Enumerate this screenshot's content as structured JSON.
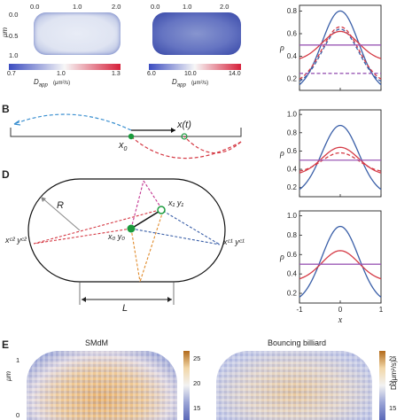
{
  "panel_a": {
    "left_map": {
      "x_ticks": [
        "0.0",
        "1.0",
        "2.0"
      ],
      "y_ticks": [
        "0.0",
        "0.5",
        "1.0"
      ],
      "y_label": "μm",
      "cb_ticks": [
        "0.7",
        "1.0",
        "1.3"
      ],
      "cb_label": "D",
      "cb_sub": "app",
      "cb_unit": "(μm²/s)",
      "cb_colors": [
        "#3b4cc0",
        "#f7f7f7",
        "#d6203a"
      ]
    },
    "right_map": {
      "x_ticks": [
        "0.0",
        "1.0",
        "2.0"
      ],
      "cb_ticks": [
        "6.0",
        "10.0",
        "14.0"
      ],
      "cb_label": "D",
      "cb_sub": "app",
      "cb_unit": "(μm²/s)"
    }
  },
  "panel_b": {
    "letter": "B",
    "x0_label": "x",
    "x0_sub": "0",
    "xt_label": "x(t)"
  },
  "panel_d": {
    "letter": "D",
    "R_label": "R",
    "L_label": "L",
    "x1y1": "x₁ y₁",
    "x0y0": "x₀ y₀",
    "xc2yc2": "xᶜ² yᶜ²",
    "xc1yc1": "xᶜ¹ yᶜ¹"
  },
  "panel_e": {
    "letter": "E",
    "left_title": "SMdM",
    "right_title": "Bouncing billiard",
    "y_label": "μm",
    "y_ticks": [
      "1",
      "0"
    ],
    "left_cb_ticks": [
      "25",
      "20",
      "15"
    ],
    "right_cb_ticks": [
      "25",
      "20",
      "15"
    ],
    "cb_label": "D (μm²/s)"
  },
  "profiles": {
    "y_label": "ρ",
    "x_label": "x",
    "x_ticks": [
      "-1",
      "0",
      "1"
    ],
    "plot1_y_ticks": [
      "0.8",
      "0.6",
      "0.4",
      "0.2"
    ],
    "plot2_y_ticks": [
      "1.0",
      "0.8",
      "0.6",
      "0.4",
      "0.2"
    ],
    "plot3_y_ticks": [
      "1.0",
      "0.8",
      "0.6",
      "0.4",
      "0.2"
    ],
    "colors": {
      "blue": "#3a5fa8",
      "red": "#d53a45",
      "purple": "#9b59b6"
    }
  },
  "chart_data": [
    {
      "type": "line",
      "xlabel": "",
      "ylabel": "ρ",
      "xlim": [
        -1,
        1
      ],
      "ylim": [
        0.1,
        0.85
      ],
      "series": [
        {
          "style": "solid blue",
          "x": [
            -1,
            -0.5,
            0,
            0.5,
            1
          ],
          "values": [
            0.15,
            0.48,
            0.8,
            0.48,
            0.15
          ]
        },
        {
          "style": "dashed blue",
          "x": [
            -1,
            -0.5,
            0,
            0.5,
            1
          ],
          "values": [
            0.18,
            0.45,
            0.64,
            0.45,
            0.18
          ]
        },
        {
          "style": "solid red",
          "x": [
            -1,
            -0.5,
            0,
            0.5,
            1
          ],
          "values": [
            0.38,
            0.52,
            0.62,
            0.52,
            0.38
          ]
        },
        {
          "style": "dashed red",
          "x": [
            -1,
            -0.5,
            0,
            0.5,
            1
          ],
          "values": [
            0.2,
            0.44,
            0.66,
            0.44,
            0.2
          ]
        },
        {
          "style": "dashed purple",
          "x": [
            -1,
            1
          ],
          "values": [
            0.25,
            0.25
          ]
        },
        {
          "style": "solid purple",
          "x": [
            -1,
            1
          ],
          "values": [
            0.5,
            0.5
          ]
        }
      ]
    },
    {
      "type": "line",
      "xlabel": "",
      "ylabel": "ρ",
      "xlim": [
        -1,
        1
      ],
      "ylim": [
        0.1,
        1.05
      ],
      "series": [
        {
          "style": "solid blue",
          "x": [
            -1,
            -0.5,
            0,
            0.5,
            1
          ],
          "values": [
            0.18,
            0.5,
            0.88,
            0.5,
            0.18
          ]
        },
        {
          "style": "solid red",
          "x": [
            -1,
            -0.5,
            0,
            0.5,
            1
          ],
          "values": [
            0.36,
            0.5,
            0.64,
            0.5,
            0.36
          ]
        },
        {
          "style": "dashed red",
          "x": [
            -1,
            -0.5,
            0,
            0.5,
            1
          ],
          "values": [
            0.38,
            0.48,
            0.58,
            0.48,
            0.38
          ]
        },
        {
          "style": "solid purple",
          "x": [
            -1,
            1
          ],
          "values": [
            0.5,
            0.5
          ]
        }
      ]
    },
    {
      "type": "line",
      "xlabel": "x",
      "ylabel": "ρ",
      "xlim": [
        -1,
        1
      ],
      "ylim": [
        0.1,
        1.05
      ],
      "series": [
        {
          "style": "solid blue",
          "x": [
            -1,
            -0.5,
            0,
            0.5,
            1
          ],
          "values": [
            0.16,
            0.48,
            0.89,
            0.48,
            0.16
          ]
        },
        {
          "style": "solid red",
          "x": [
            -1,
            -0.5,
            0,
            0.5,
            1
          ],
          "values": [
            0.35,
            0.5,
            0.64,
            0.5,
            0.35
          ]
        },
        {
          "style": "solid purple",
          "x": [
            -1,
            1
          ],
          "values": [
            0.5,
            0.5
          ]
        }
      ]
    }
  ]
}
